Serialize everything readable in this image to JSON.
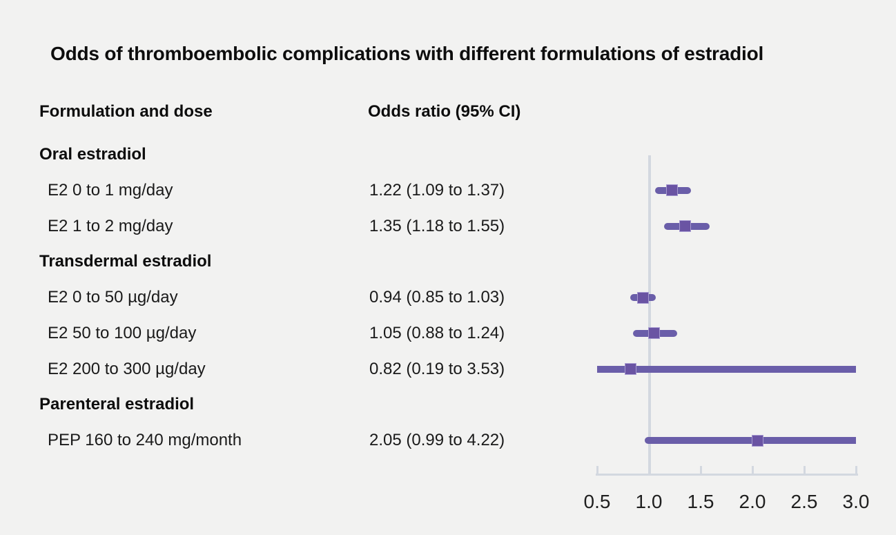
{
  "title": "Odds of thromboembolic complications with different formulations of estradiol",
  "columns": {
    "formulation": "Formulation and dose",
    "odds_ratio": "Odds ratio (95% CI)"
  },
  "colors": {
    "background": "#f2f2f1",
    "marker": "#6a54a3",
    "marker_edge": "#a79bd1",
    "ci_line": "#6a5ea9",
    "axis": "#d3d8e0",
    "text": "#1a1a1a"
  },
  "chart_data": {
    "type": "scatter",
    "subtype": "forest-plot",
    "title": "Odds of thromboembolic complications with different formulations of estradiol",
    "xlabel": "",
    "ylabel": "",
    "axis": {
      "ticks": [
        "0.5",
        "1.0",
        "1.5",
        "2.0",
        "2.5",
        "3.0"
      ],
      "tick_values": [
        0.5,
        1.0,
        1.5,
        2.0,
        2.5,
        3.0
      ],
      "range": [
        0.5,
        3.0
      ],
      "reference_line": 1.0,
      "grid": false
    },
    "groups": [
      {
        "label": "Oral estradiol",
        "rows": [
          {
            "label": "E2 0 to 1 mg/day",
            "or_text": "1.22 (1.09 to 1.37)",
            "or": 1.22,
            "ci_low": 1.09,
            "ci_high": 1.37
          },
          {
            "label": "E2 1 to 2 mg/day",
            "or_text": "1.35 (1.18 to 1.55)",
            "or": 1.35,
            "ci_low": 1.18,
            "ci_high": 1.55
          }
        ]
      },
      {
        "label": "Transdermal estradiol",
        "rows": [
          {
            "label": "E2 0 to 50 µg/day",
            "or_text": "0.94 (0.85 to 1.03)",
            "or": 0.94,
            "ci_low": 0.85,
            "ci_high": 1.03
          },
          {
            "label": "E2 50 to 100 µg/day",
            "or_text": "1.05 (0.88 to 1.24)",
            "or": 1.05,
            "ci_low": 0.88,
            "ci_high": 1.24
          },
          {
            "label": "E2 200 to 300 µg/day",
            "or_text": "0.82 (0.19 to 3.53)",
            "or": 0.82,
            "ci_low": 0.19,
            "ci_high": 3.53
          }
        ]
      },
      {
        "label": "Parenteral estradiol",
        "rows": [
          {
            "label": "PEP 160 to 240 mg/month",
            "or_text": "2.05 (0.99 to 4.22)",
            "or": 2.05,
            "ci_low": 0.99,
            "ci_high": 4.22
          }
        ]
      }
    ]
  }
}
